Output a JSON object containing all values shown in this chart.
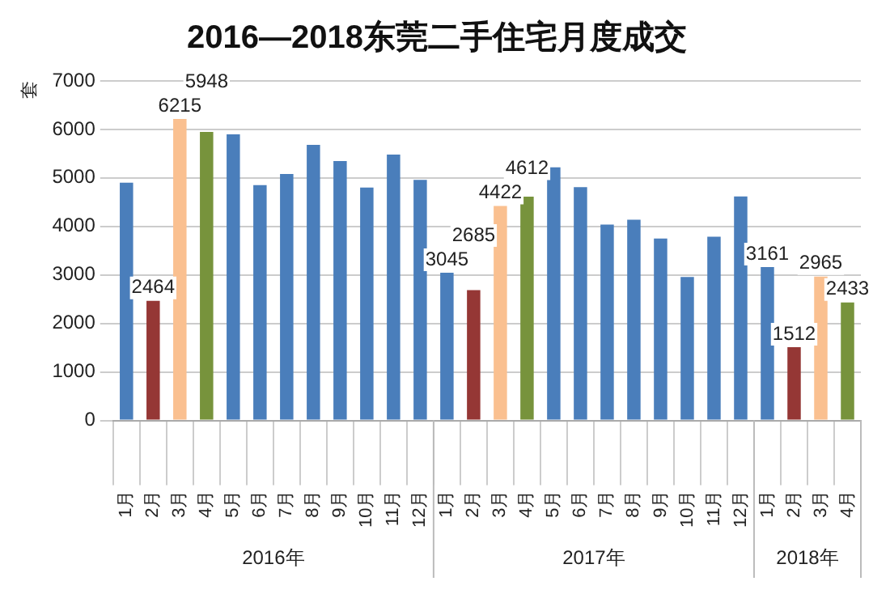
{
  "chart_data": {
    "type": "bar",
    "title": "2016—2018东莞二手住宅月度成交",
    "ylabel": "套",
    "categories": [
      "1月",
      "2月",
      "3月",
      "4月",
      "5月",
      "6月",
      "7月",
      "8月",
      "9月",
      "10月",
      "11月",
      "12月",
      "1月",
      "2月",
      "3月",
      "4月",
      "5月",
      "6月",
      "7月",
      "8月",
      "9月",
      "10月",
      "11月",
      "12月",
      "1月",
      "2月",
      "3月",
      "4月"
    ],
    "values": [
      4900,
      2464,
      6215,
      5948,
      5900,
      4850,
      5080,
      5680,
      5350,
      4800,
      5480,
      4960,
      3045,
      2685,
      4422,
      4612,
      5220,
      4810,
      4040,
      4140,
      3750,
      2960,
      3790,
      4620,
      3161,
      1512,
      2965,
      2433
    ],
    "value_labels": [
      null,
      "2464",
      "6215",
      "5948",
      null,
      null,
      null,
      null,
      null,
      null,
      null,
      null,
      "3045",
      "2685",
      "4422",
      "4612",
      null,
      null,
      null,
      null,
      null,
      null,
      null,
      null,
      "3161",
      "1512",
      "2965",
      "2433"
    ],
    "colors": [
      "#4a7ebb",
      "#953735",
      "#fac090",
      "#77933c",
      "#4a7ebb",
      "#4a7ebb",
      "#4a7ebb",
      "#4a7ebb",
      "#4a7ebb",
      "#4a7ebb",
      "#4a7ebb",
      "#4a7ebb",
      "#4a7ebb",
      "#953735",
      "#fac090",
      "#77933c",
      "#4a7ebb",
      "#4a7ebb",
      "#4a7ebb",
      "#4a7ebb",
      "#4a7ebb",
      "#4a7ebb",
      "#4a7ebb",
      "#4a7ebb",
      "#4a7ebb",
      "#953735",
      "#fac090",
      "#77933c"
    ],
    "annotations": [
      "2016年",
      "2017年",
      "2018年"
    ],
    "ylim": [
      0,
      7000
    ],
    "yticks": [
      0,
      1000,
      2000,
      3000,
      4000,
      5000,
      6000,
      7000
    ],
    "grid": "y",
    "legend": false
  }
}
